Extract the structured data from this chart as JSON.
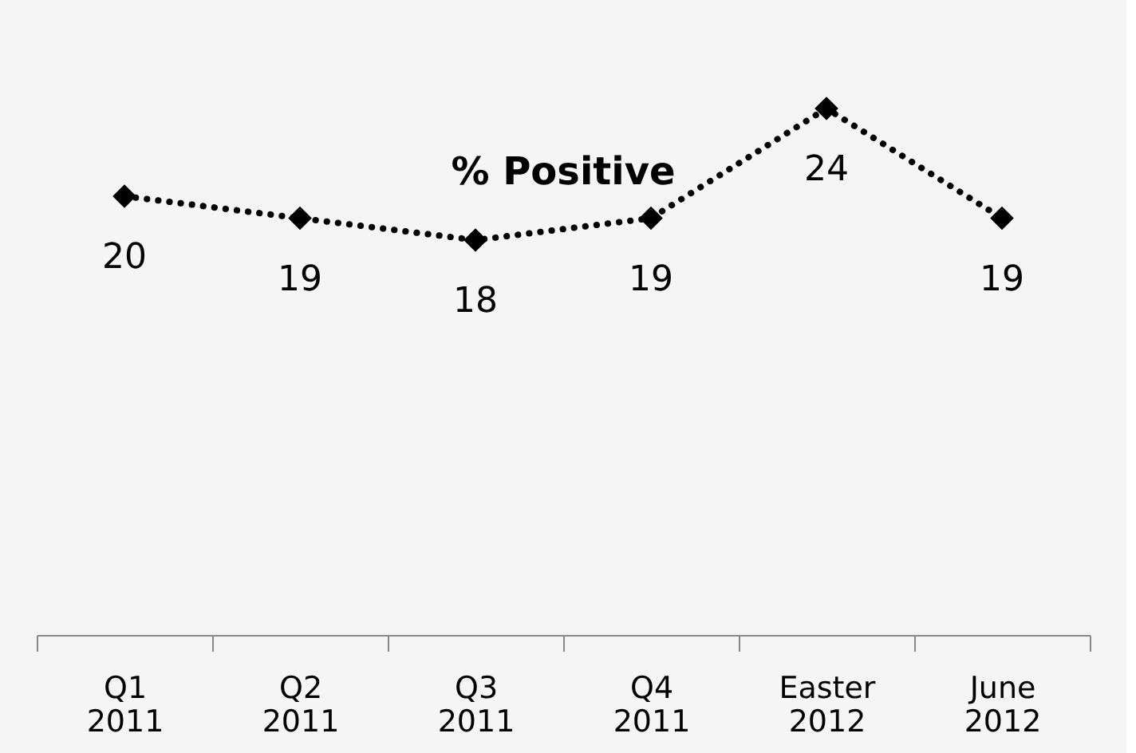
{
  "chart_data": {
    "type": "line",
    "title": "% Positive",
    "categories": [
      "Q1 2011",
      "Q2 2011",
      "Q3 2011",
      "Q4 2011",
      "Easter 2012",
      "June 2012"
    ],
    "series": [
      {
        "color": "#000000",
        "values": [
          20,
          19,
          18,
          19,
          24,
          19
        ]
      }
    ],
    "data_labels": true,
    "marker": "diamond",
    "line_style": "dotted"
  }
}
